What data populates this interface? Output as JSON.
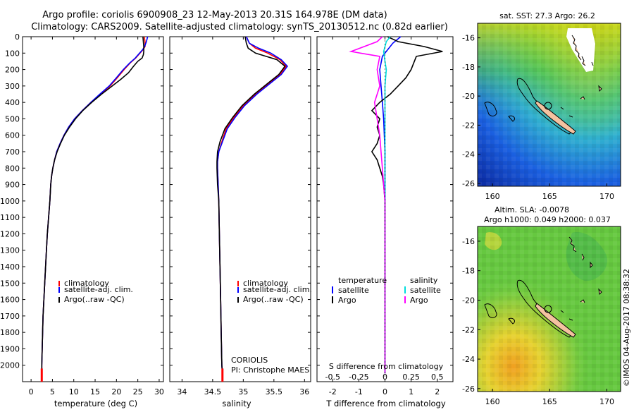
{
  "header": {
    "title_line1": "Argo profile: coriolis 6900908_23 12-May-2013 20.31S 164.978E (DM data)",
    "title_line2": "Climatology: CARS2009. Satellite-adjusted climatology: synTS_20130512.nc (0.82d earlier)"
  },
  "footer": {
    "credit": "©IMOS 04-Aug-2017 08:38:32",
    "institution": "CORIOLIS",
    "pi": "PI: Christophe MAES"
  },
  "colors": {
    "climatology": "#ff0000",
    "satellite": "#0000ff",
    "argo": "#000000",
    "salinity_satellite": "#00dddd",
    "salinity_argo": "#ff00ff"
  },
  "legends": {
    "temp_salt": [
      "climatology",
      "satellite-adj. clim.",
      "Argo(..raw -QC)"
    ],
    "diff_temperature_header": "temperature",
    "diff_salinity_header": "salinity",
    "diff_items": [
      "satellite",
      "Argo"
    ]
  },
  "maps": {
    "sst_title": "sat. SST: 27.3 Argo: 26.2",
    "sla_title1": "Altim. SLA: -0.0078",
    "sla_title2": "Argo h1000: 0.049 h2000: 0.037",
    "lon_ticks": [
      "160",
      "165",
      "170"
    ],
    "lat_ticks": [
      "-16",
      "-18",
      "-20",
      "-22",
      "-24",
      "-26"
    ]
  },
  "chart_data": [
    {
      "type": "line",
      "name": "temperature-profile",
      "xlabel": "temperature (deg C)",
      "ylabel": "",
      "xlim": [
        -2,
        31
      ],
      "ylim": [
        2100,
        0
      ],
      "xticks": [
        "0",
        "5",
        "10",
        "15",
        "20",
        "25",
        "30"
      ],
      "yticks": [
        "0",
        "100",
        "200",
        "300",
        "400",
        "500",
        "600",
        "700",
        "800",
        "900",
        "1000",
        "1100",
        "1200",
        "1300",
        "1400",
        "1500",
        "1600",
        "1700",
        "1800",
        "1900",
        "2000"
      ],
      "series": [
        {
          "name": "climatology",
          "color": "#ff0000",
          "points": [
            [
              26.5,
              0
            ],
            [
              26.7,
              30
            ],
            [
              26.7,
              60
            ],
            [
              26.2,
              80
            ],
            [
              25.5,
              100
            ],
            [
              24.5,
              130
            ],
            [
              23.2,
              160
            ],
            [
              21.8,
              200
            ],
            [
              20.2,
              250
            ],
            [
              18.5,
              300
            ],
            [
              16.2,
              350
            ],
            [
              14,
              400
            ],
            [
              12,
              450
            ],
            [
              10.2,
              500
            ],
            [
              8.8,
              550
            ],
            [
              7.7,
              600
            ],
            [
              6.8,
              650
            ],
            [
              6,
              700
            ],
            [
              5.5,
              750
            ],
            [
              5.1,
              800
            ],
            [
              4.8,
              850
            ],
            [
              4.6,
              900
            ],
            [
              4.4,
              1000
            ],
            [
              4.1,
              1100
            ],
            [
              3.8,
              1200
            ],
            [
              3.6,
              1300
            ],
            [
              3.4,
              1400
            ],
            [
              3.2,
              1500
            ],
            [
              3,
              1600
            ],
            [
              2.8,
              1700
            ],
            [
              2.7,
              1800
            ],
            [
              2.6,
              1900
            ],
            [
              2.5,
              2000
            ],
            [
              2.5,
              2050
            ]
          ]
        },
        {
          "name": "satellite-adj. clim.",
          "color": "#0000ff",
          "points": [
            [
              27.3,
              0
            ],
            [
              27,
              30
            ],
            [
              26.6,
              60
            ],
            [
              26.1,
              80
            ],
            [
              25.4,
              100
            ],
            [
              24.4,
              130
            ],
            [
              23.1,
              160
            ],
            [
              21.6,
              200
            ],
            [
              20,
              250
            ],
            [
              18.3,
              300
            ],
            [
              16.1,
              350
            ],
            [
              14,
              400
            ],
            [
              12,
              450
            ],
            [
              10.2,
              500
            ],
            [
              8.8,
              550
            ],
            [
              7.7,
              600
            ],
            [
              6.8,
              650
            ],
            [
              6,
              700
            ],
            [
              5.5,
              750
            ],
            [
              5.1,
              800
            ],
            [
              4.8,
              850
            ],
            [
              4.6,
              900
            ],
            [
              4.4,
              1000
            ],
            [
              4.1,
              1100
            ],
            [
              3.8,
              1200
            ],
            [
              3.6,
              1300
            ],
            [
              3.4,
              1400
            ],
            [
              3.2,
              1500
            ],
            [
              3,
              1600
            ],
            [
              2.8,
              1700
            ],
            [
              2.7,
              1800
            ],
            [
              2.6,
              1900
            ],
            [
              2.5,
              2000
            ],
            [
              2.5,
              2050
            ]
          ]
        },
        {
          "name": "Argo(..raw -QC)",
          "color": "#000000",
          "points": [
            [
              26.2,
              0
            ],
            [
              26.3,
              30
            ],
            [
              26.4,
              60
            ],
            [
              26.4,
              90
            ],
            [
              26.3,
              110
            ],
            [
              26,
              130
            ],
            [
              25,
              150
            ],
            [
              24,
              180
            ],
            [
              22.8,
              220
            ],
            [
              21,
              260
            ],
            [
              19,
              300
            ],
            [
              16.5,
              350
            ],
            [
              14.2,
              400
            ],
            [
              12.1,
              450
            ],
            [
              10.4,
              500
            ],
            [
              9,
              550
            ],
            [
              7.8,
              600
            ],
            [
              6.9,
              650
            ],
            [
              6.1,
              700
            ],
            [
              5.5,
              750
            ],
            [
              5.1,
              800
            ],
            [
              4.8,
              850
            ],
            [
              4.6,
              900
            ],
            [
              4.4,
              1000
            ],
            [
              4.1,
              1100
            ],
            [
              3.8,
              1200
            ],
            [
              3.6,
              1300
            ],
            [
              3.4,
              1400
            ],
            [
              3.2,
              1500
            ],
            [
              3,
              1600
            ],
            [
              2.8,
              1700
            ],
            [
              2.7,
              1800
            ],
            [
              2.6,
              1900
            ],
            [
              2.5,
              2000
            ],
            [
              2.5,
              2050
            ]
          ]
        }
      ]
    },
    {
      "type": "line",
      "name": "salinity-profile",
      "xlabel": "salinity",
      "ylabel": "",
      "xlim": [
        33.8,
        36.1
      ],
      "ylim": [
        2100,
        0
      ],
      "xticks": [
        "34",
        "34.5",
        "35",
        "35.5",
        "36"
      ],
      "series": [
        {
          "name": "climatology",
          "color": "#ff0000",
          "points": [
            [
              35.05,
              0
            ],
            [
              35.1,
              40
            ],
            [
              35.2,
              70
            ],
            [
              35.4,
              100
            ],
            [
              35.6,
              140
            ],
            [
              35.7,
              180
            ],
            [
              35.6,
              230
            ],
            [
              35.4,
              290
            ],
            [
              35.2,
              350
            ],
            [
              35.0,
              420
            ],
            [
              34.85,
              490
            ],
            [
              34.72,
              560
            ],
            [
              34.65,
              640
            ],
            [
              34.6,
              700
            ],
            [
              34.58,
              760
            ],
            [
              34.58,
              800
            ],
            [
              34.59,
              900
            ],
            [
              34.6,
              1000
            ],
            [
              34.61,
              1200
            ],
            [
              34.62,
              1400
            ],
            [
              34.63,
              1600
            ],
            [
              34.64,
              1800
            ],
            [
              34.65,
              2000
            ],
            [
              34.66,
              2050
            ]
          ]
        },
        {
          "name": "satellite-adj. clim.",
          "color": "#0000ff",
          "points": [
            [
              35.05,
              0
            ],
            [
              35.1,
              40
            ],
            [
              35.25,
              70
            ],
            [
              35.45,
              100
            ],
            [
              35.62,
              140
            ],
            [
              35.72,
              180
            ],
            [
              35.62,
              230
            ],
            [
              35.42,
              290
            ],
            [
              35.22,
              350
            ],
            [
              35.02,
              420
            ],
            [
              34.87,
              490
            ],
            [
              34.74,
              560
            ],
            [
              34.66,
              640
            ],
            [
              34.6,
              700
            ],
            [
              34.58,
              760
            ],
            [
              34.58,
              800
            ],
            [
              34.59,
              900
            ],
            [
              34.6,
              1000
            ],
            [
              34.61,
              1200
            ],
            [
              34.62,
              1400
            ],
            [
              34.63,
              1600
            ],
            [
              34.64,
              1800
            ],
            [
              34.65,
              2000
            ],
            [
              34.66,
              2050
            ]
          ]
        },
        {
          "name": "Argo(..raw -QC)",
          "color": "#000000",
          "points": [
            [
              35.03,
              0
            ],
            [
              35.05,
              40
            ],
            [
              35.08,
              70
            ],
            [
              35.2,
              100
            ],
            [
              35.55,
              140
            ],
            [
              35.68,
              180
            ],
            [
              35.58,
              230
            ],
            [
              35.38,
              290
            ],
            [
              35.18,
              350
            ],
            [
              34.98,
              420
            ],
            [
              34.83,
              490
            ],
            [
              34.7,
              560
            ],
            [
              34.62,
              640
            ],
            [
              34.58,
              700
            ],
            [
              34.57,
              760
            ],
            [
              34.57,
              800
            ],
            [
              34.58,
              900
            ],
            [
              34.6,
              1000
            ],
            [
              34.61,
              1200
            ],
            [
              34.62,
              1400
            ],
            [
              34.63,
              1600
            ],
            [
              34.64,
              1800
            ],
            [
              34.65,
              2000
            ],
            [
              34.66,
              2050
            ]
          ]
        }
      ]
    },
    {
      "type": "line",
      "name": "difference-profile",
      "xlabel": "T difference from climatology",
      "xlabel_top": "S difference from climatology",
      "xlim": [
        -2.6,
        2.6
      ],
      "ylim": [
        2100,
        0
      ],
      "xticks": [
        "-2",
        "-1",
        "0",
        "1",
        "2"
      ],
      "xticks_salinity": [
        "-0.5",
        "-0.25",
        "0",
        "0.25",
        "0.5"
      ],
      "series": [
        {
          "name": "temperature satellite",
          "color": "#0000ff",
          "points": [
            [
              0.6,
              0
            ],
            [
              0.3,
              40
            ],
            [
              0.1,
              80
            ],
            [
              -0.1,
              120
            ],
            [
              -0.2,
              200
            ],
            [
              -0.15,
              300
            ],
            [
              -0.1,
              400
            ],
            [
              -0.05,
              500
            ],
            [
              0,
              700
            ],
            [
              0,
              1000
            ],
            [
              0,
              1500
            ],
            [
              0,
              2050
            ]
          ]
        },
        {
          "name": "temperature Argo",
          "color": "#000000",
          "points": [
            [
              0.1,
              0
            ],
            [
              0.5,
              30
            ],
            [
              1.5,
              60
            ],
            [
              2.2,
              90
            ],
            [
              1.2,
              120
            ],
            [
              1,
              200
            ],
            [
              0.8,
              250
            ],
            [
              0.5,
              300
            ],
            [
              0.2,
              350
            ],
            [
              -0.2,
              400
            ],
            [
              -0.5,
              450
            ],
            [
              -0.2,
              500
            ],
            [
              -0.3,
              550
            ],
            [
              -0.2,
              600
            ],
            [
              -0.3,
              650
            ],
            [
              -0.5,
              700
            ],
            [
              -0.3,
              750
            ],
            [
              -0.2,
              800
            ],
            [
              -0.1,
              850
            ],
            [
              -0.05,
              900
            ],
            [
              0,
              1000
            ],
            [
              0,
              2050
            ]
          ]
        },
        {
          "name": "salinity satellite",
          "color": "#00dddd",
          "points": [
            [
              0.2,
              0
            ],
            [
              0.05,
              30
            ],
            [
              0,
              60
            ],
            [
              -0.05,
              90
            ],
            [
              0,
              150
            ],
            [
              0.05,
              200
            ],
            [
              0,
              300
            ],
            [
              0,
              500
            ],
            [
              0,
              1000
            ],
            [
              0,
              1500
            ],
            [
              0,
              2050
            ]
          ]
        },
        {
          "name": "salinity Argo",
          "color": "#ff00ff",
          "points": [
            [
              -0.1,
              0
            ],
            [
              -0.3,
              30
            ],
            [
              -1.3,
              90
            ],
            [
              -0.2,
              120
            ],
            [
              -0.3,
              200
            ],
            [
              -0.2,
              300
            ],
            [
              -0.4,
              400
            ],
            [
              -0.3,
              500
            ],
            [
              -0.2,
              600
            ],
            [
              -0.15,
              700
            ],
            [
              -0.1,
              800
            ],
            [
              -0.05,
              900
            ],
            [
              0,
              1000
            ],
            [
              0,
              2050
            ]
          ]
        }
      ]
    }
  ]
}
